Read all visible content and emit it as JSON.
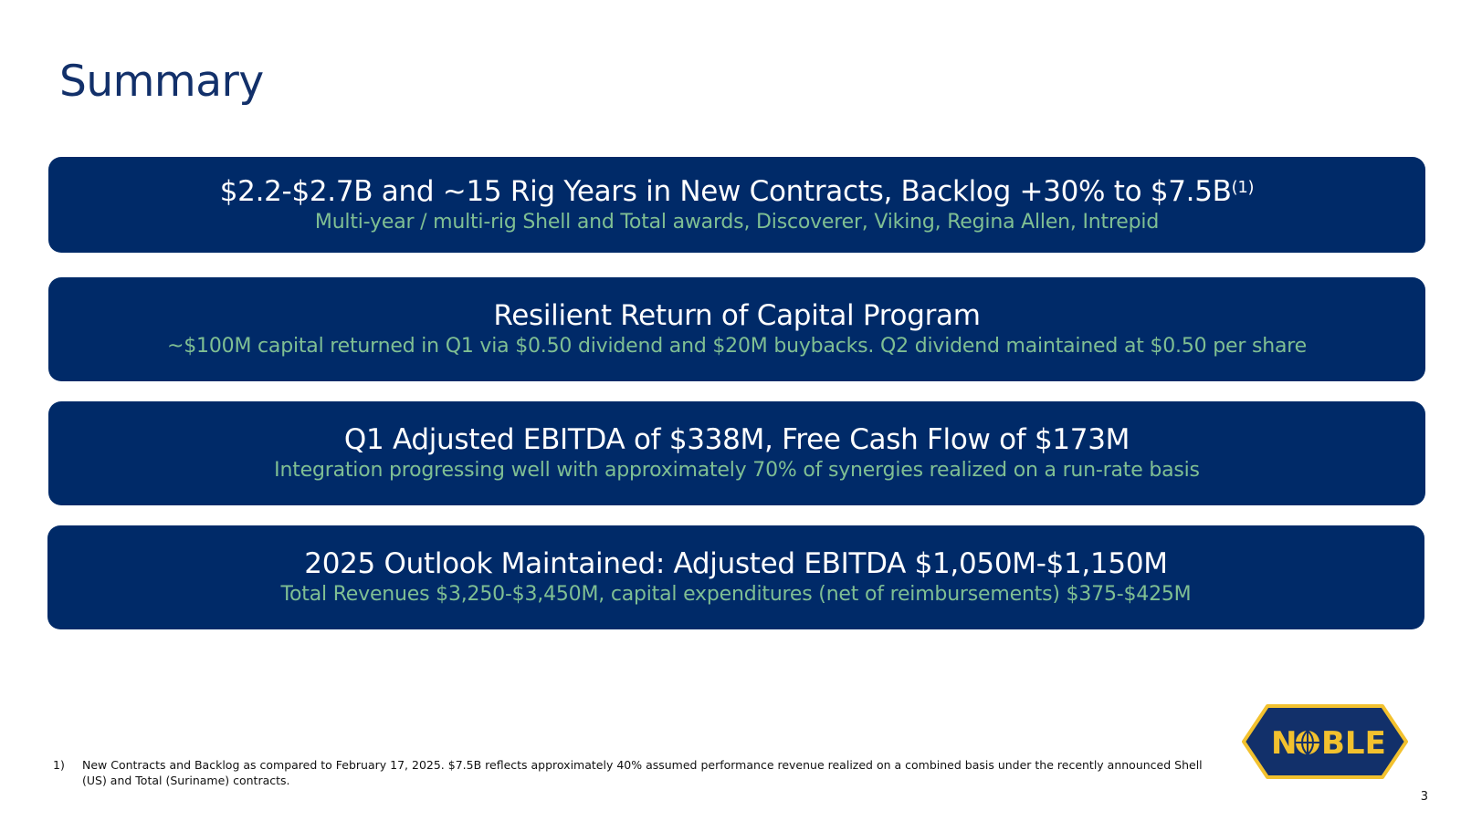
{
  "slide": {
    "title": "Summary",
    "page_number": "3"
  },
  "cards": [
    {
      "headline": "$2.2-$2.7B and ~15 Rig Years in New Contracts, Backlog +30% to $7.5B",
      "footnote_ref": "(1)",
      "subtext": "Multi-year / multi-rig Shell and Total awards, Discoverer, Viking, Regina Allen, Intrepid"
    },
    {
      "headline": "Resilient Return of Capital Program",
      "subtext": "~$100M capital returned in Q1 via $0.50 dividend and $20M buybacks.  Q2 dividend maintained at $0.50 per share"
    },
    {
      "headline": "Q1 Adjusted EBITDA of $338M, Free Cash Flow of $173M",
      "subtext": "Integration progressing well with approximately 70% of synergies realized on a run-rate basis"
    },
    {
      "headline": "2025 Outlook Maintained: Adjusted EBITDA $1,050M-$1,150M",
      "subtext": "Total Revenues $3,250-$3,450M, capital expenditures (net of reimbursements) $375-$425M"
    }
  ],
  "footnote": {
    "marker": "1)",
    "text": "New Contracts and Backlog as compared to February 17, 2025.  $7.5B reflects approximately 40% assumed performance revenue realized on a combined basis under the recently announced Shell (US) and Total (Suriname) contracts."
  },
  "logo": {
    "text_prefix": "N",
    "text_suffix": "BLE",
    "icon": "globe-icon",
    "colors": {
      "fill": "#12306a",
      "border": "#f2c12e",
      "text": "#f2c12e"
    }
  },
  "colors": {
    "title": "#12306a",
    "card_bg": "#002a68",
    "card_headline": "#ffffff",
    "card_subtext": "#7fbf93"
  }
}
